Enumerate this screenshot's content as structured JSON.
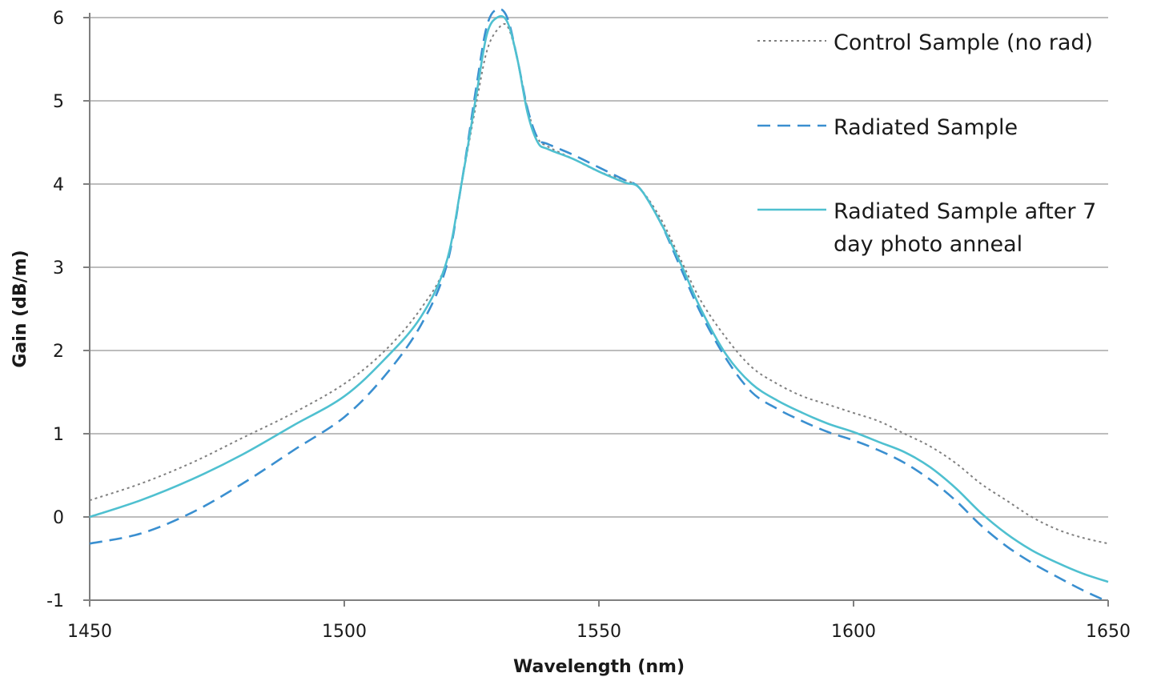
{
  "chart_data": {
    "type": "line",
    "xlabel": "Wavelength (nm)",
    "ylabel": "Gain  (dB/m)",
    "xlim": [
      1450,
      1650
    ],
    "ylim": [
      -1,
      6
    ],
    "x_ticks": [
      1450,
      1500,
      1550,
      1600,
      1650
    ],
    "y_ticks": [
      -1,
      0,
      1,
      2,
      3,
      4,
      5,
      6
    ],
    "grid": "horizontal",
    "legend_position": "top-right",
    "series": [
      {
        "name": "Control Sample (no rad)",
        "style": "dotted",
        "color": "#808080",
        "x": [
          1450,
          1460,
          1470,
          1480,
          1490,
          1500,
          1508,
          1515,
          1520,
          1523,
          1526,
          1528,
          1530,
          1532,
          1534,
          1536,
          1538,
          1540,
          1545,
          1550,
          1555,
          1558,
          1562,
          1566,
          1570,
          1575,
          1580,
          1585,
          1590,
          1595,
          1600,
          1605,
          1610,
          1615,
          1620,
          1625,
          1630,
          1635,
          1640,
          1645,
          1650
        ],
        "y": [
          0.2,
          0.4,
          0.65,
          0.95,
          1.25,
          1.6,
          2.0,
          2.5,
          3.05,
          4.0,
          5.0,
          5.6,
          5.85,
          5.9,
          5.5,
          4.9,
          4.55,
          4.45,
          4.3,
          4.15,
          4.05,
          3.95,
          3.6,
          3.1,
          2.6,
          2.15,
          1.8,
          1.6,
          1.45,
          1.35,
          1.25,
          1.15,
          1.0,
          0.85,
          0.65,
          0.4,
          0.2,
          0.0,
          -0.15,
          -0.25,
          -0.32
        ]
      },
      {
        "name": "Radiated Sample",
        "style": "dashed",
        "color": "#3a8fd0",
        "x": [
          1450,
          1460,
          1470,
          1480,
          1490,
          1500,
          1508,
          1515,
          1520,
          1523,
          1526,
          1528,
          1530,
          1532,
          1534,
          1536,
          1538,
          1540,
          1545,
          1550,
          1555,
          1558,
          1562,
          1566,
          1570,
          1575,
          1580,
          1585,
          1590,
          1595,
          1600,
          1605,
          1610,
          1615,
          1620,
          1625,
          1630,
          1635,
          1640,
          1645,
          1650
        ],
        "y": [
          -0.32,
          -0.2,
          0.05,
          0.4,
          0.8,
          1.2,
          1.7,
          2.3,
          3.0,
          4.0,
          5.2,
          5.9,
          6.1,
          6.0,
          5.5,
          4.9,
          4.55,
          4.48,
          4.35,
          4.2,
          4.05,
          3.95,
          3.55,
          3.0,
          2.45,
          1.9,
          1.5,
          1.3,
          1.15,
          1.02,
          0.92,
          0.8,
          0.65,
          0.45,
          0.2,
          -0.1,
          -0.35,
          -0.55,
          -0.72,
          -0.88,
          -1.02
        ]
      },
      {
        "name": "Radiated Sample after 7 day photo anneal",
        "style": "solid",
        "color": "#4fc0d0",
        "x": [
          1450,
          1460,
          1470,
          1480,
          1490,
          1500,
          1508,
          1515,
          1520,
          1523,
          1526,
          1528,
          1530,
          1532,
          1534,
          1536,
          1538,
          1540,
          1545,
          1550,
          1555,
          1558,
          1562,
          1566,
          1570,
          1575,
          1580,
          1585,
          1590,
          1595,
          1600,
          1605,
          1610,
          1615,
          1620,
          1625,
          1630,
          1635,
          1640,
          1645,
          1650
        ],
        "y": [
          0.0,
          0.2,
          0.45,
          0.75,
          1.1,
          1.45,
          1.9,
          2.4,
          3.05,
          4.0,
          5.1,
          5.8,
          6.0,
          5.95,
          5.5,
          4.85,
          4.5,
          4.42,
          4.3,
          4.15,
          4.02,
          3.95,
          3.55,
          3.05,
          2.5,
          1.95,
          1.6,
          1.4,
          1.25,
          1.12,
          1.02,
          0.9,
          0.78,
          0.6,
          0.35,
          0.05,
          -0.2,
          -0.4,
          -0.55,
          -0.68,
          -0.78
        ]
      }
    ]
  }
}
